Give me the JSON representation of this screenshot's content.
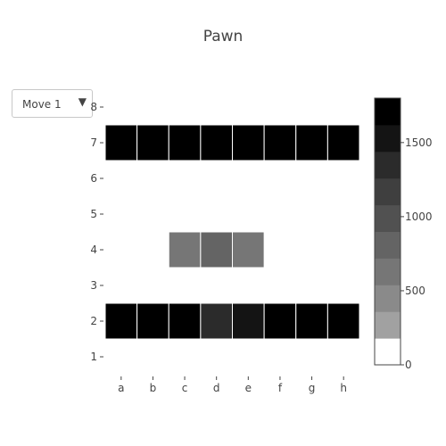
{
  "dropdown": {
    "selected": "Move 1"
  },
  "chart_data": {
    "type": "heatmap",
    "title": "Pawn",
    "x": [
      "a",
      "b",
      "c",
      "d",
      "e",
      "f",
      "g",
      "h"
    ],
    "y": [
      1,
      2,
      3,
      4,
      5,
      6,
      7,
      8
    ],
    "z": [
      [
        null,
        null,
        null,
        null,
        null,
        null,
        null,
        null
      ],
      [
        1750,
        1750,
        1750,
        1300,
        1450,
        1750,
        1750,
        1750
      ],
      [
        null,
        null,
        null,
        null,
        null,
        null,
        null,
        null
      ],
      [
        null,
        null,
        560,
        780,
        660,
        null,
        null,
        null
      ],
      [
        null,
        null,
        null,
        null,
        null,
        null,
        null,
        null
      ],
      [
        null,
        null,
        null,
        null,
        null,
        null,
        null,
        null
      ],
      [
        1750,
        1750,
        1750,
        1750,
        1750,
        1750,
        1750,
        1750
      ],
      [
        null,
        null,
        null,
        null,
        null,
        null,
        null,
        null
      ]
    ],
    "colorbar": {
      "range": [
        0,
        1800
      ],
      "ticks": [
        0,
        500,
        1000,
        1500
      ],
      "colors": [
        "#ffffff",
        "#a1a1a1",
        "#8a8a8a",
        "#767676",
        "#646464",
        "#515151",
        "#3f3f3f",
        "#2b2b2b",
        "#141414",
        "#000000"
      ]
    }
  }
}
